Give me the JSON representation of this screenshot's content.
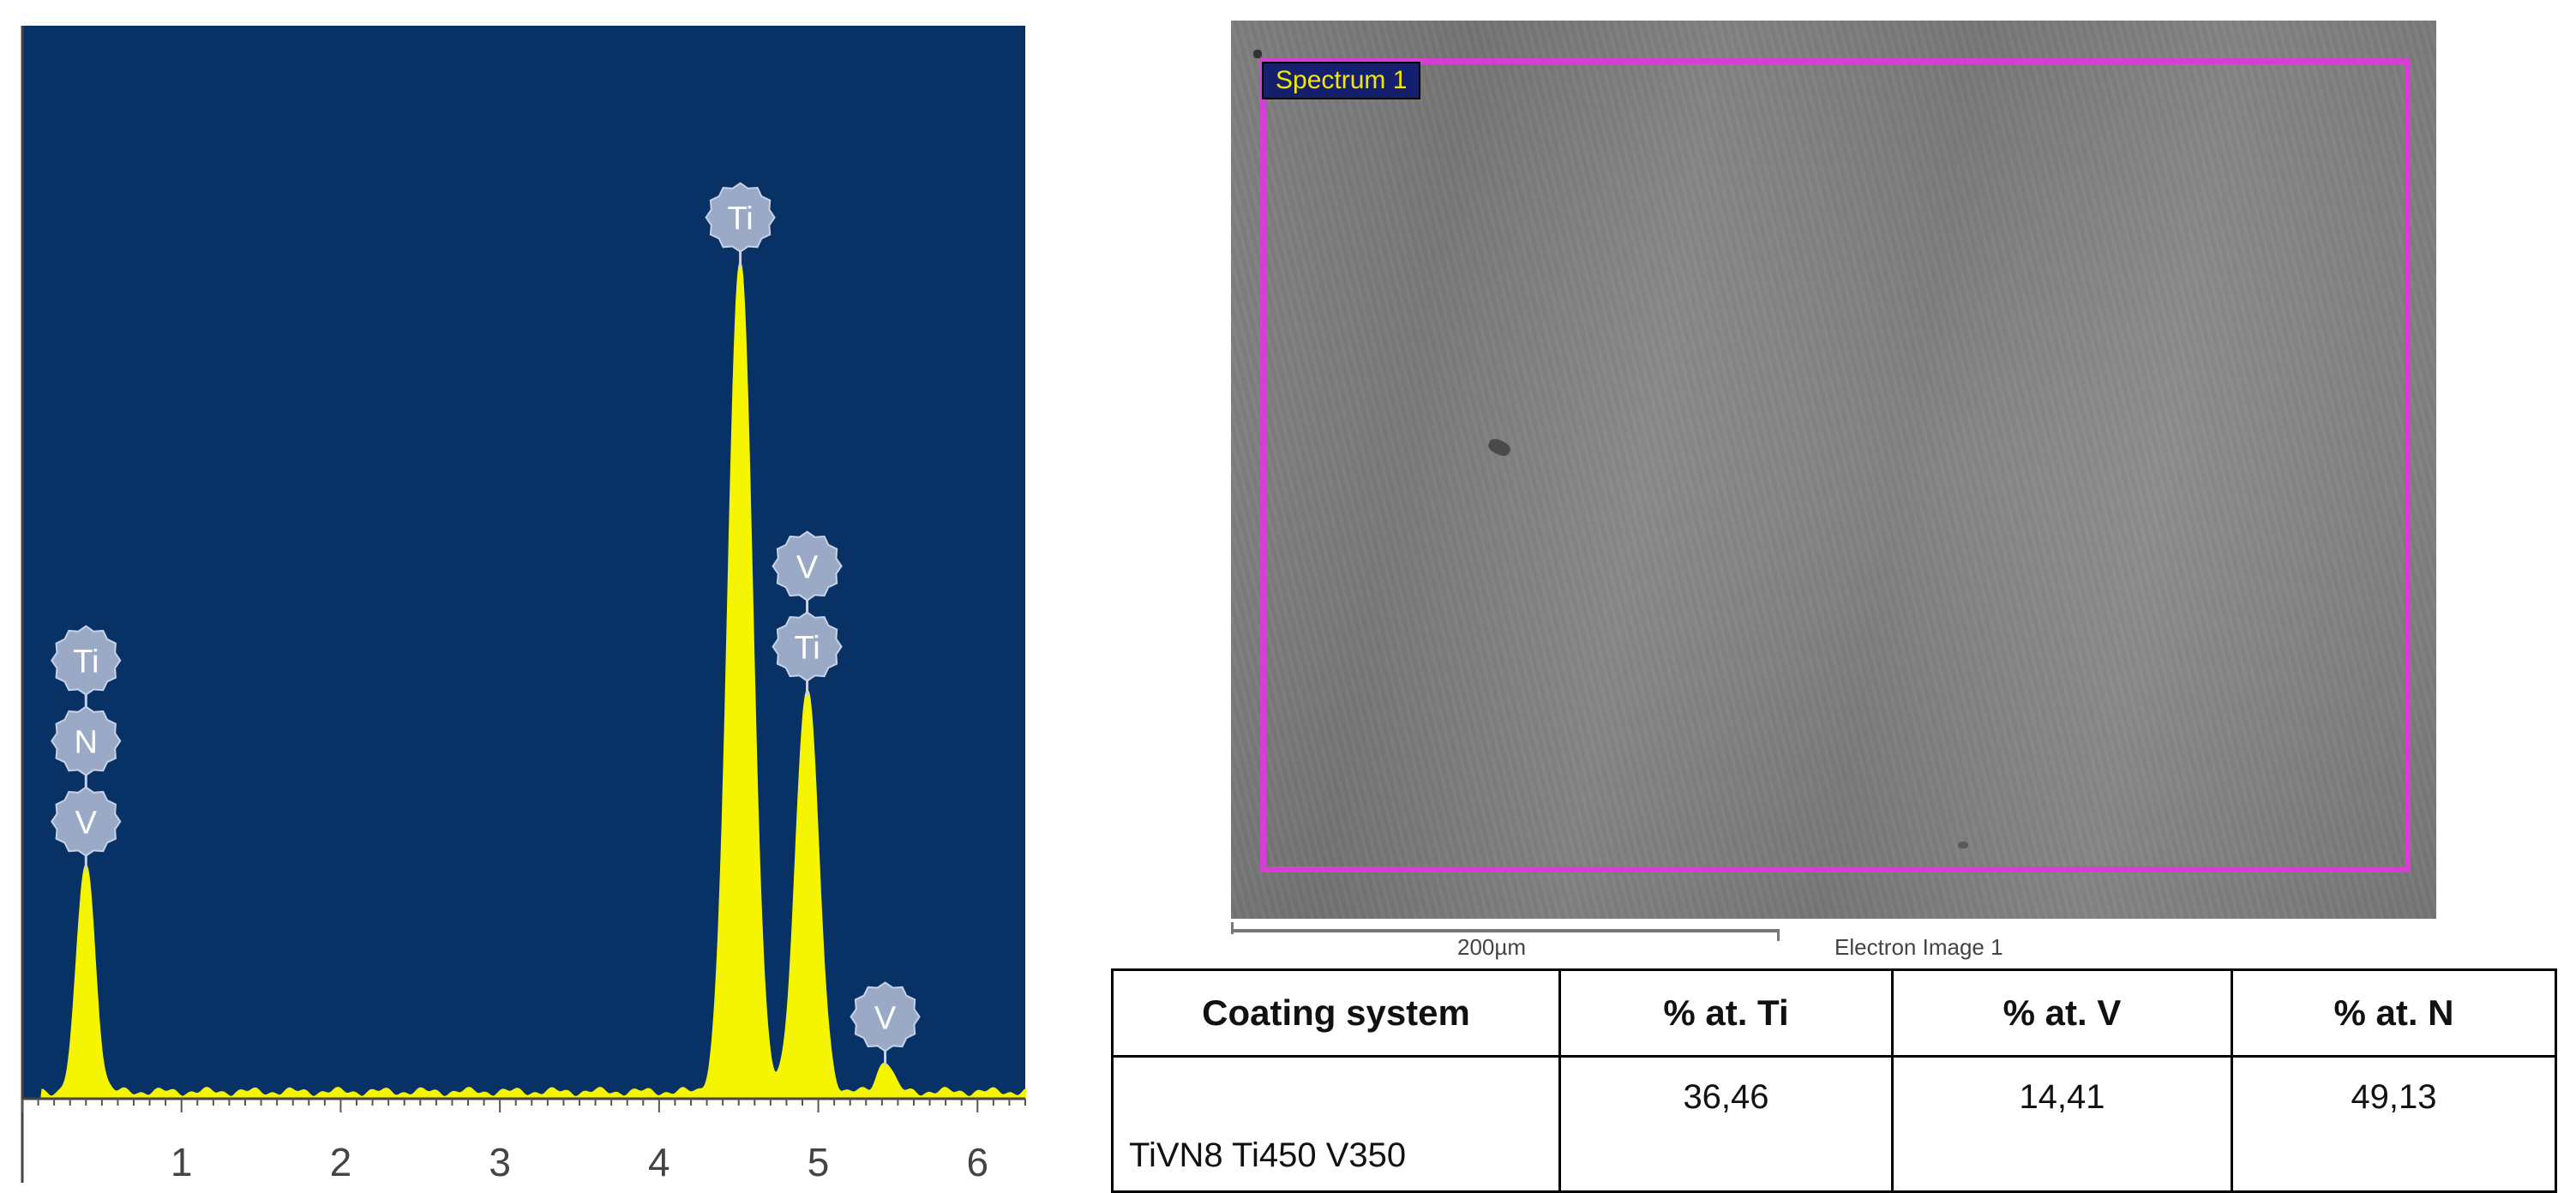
{
  "chart_data": {
    "type": "line",
    "title": "",
    "xlabel": "",
    "ylabel": "",
    "xlim": [
      0,
      6.3
    ],
    "ylim": [
      0,
      1
    ],
    "x_ticks": [
      "1",
      "2",
      "3",
      "4",
      "5",
      "6"
    ],
    "x_tick_values": [
      1,
      2,
      3,
      4,
      5,
      6
    ],
    "background_color": "#083266",
    "fill_color": "#f5f500",
    "grid": false,
    "peaks": [
      {
        "x": 0.4,
        "height": 0.212
      },
      {
        "x": 4.51,
        "height": 0.775
      },
      {
        "x": 4.93,
        "height": 0.375
      },
      {
        "x": 5.42,
        "height": 0.03
      }
    ],
    "peak_labels": [
      {
        "x": 0.4,
        "labels": [
          "Ti",
          "N",
          "V"
        ]
      },
      {
        "x": 4.51,
        "labels": [
          "Ti"
        ]
      },
      {
        "x": 4.93,
        "labels": [
          "V",
          "Ti"
        ]
      },
      {
        "x": 5.42,
        "labels": [
          "V"
        ]
      }
    ]
  },
  "electron_image": {
    "spectrum_label": "Spectrum 1",
    "scale_bar_label": "200µm",
    "caption": "Electron Image 1",
    "box_color": "#d63fd4"
  },
  "composition_table": {
    "headers": [
      "Coating system",
      "% at. Ti",
      "% at. V",
      "% at. N"
    ],
    "rows": [
      [
        "TiVN8 Ti450 V350",
        "36,46",
        "14,41",
        "49,13"
      ]
    ]
  }
}
